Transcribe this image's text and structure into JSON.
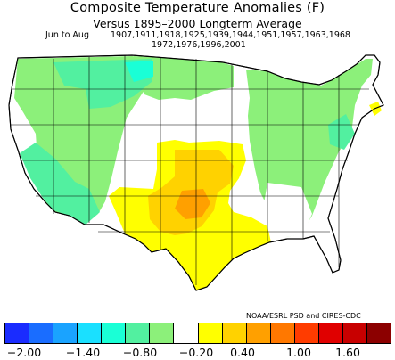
{
  "title": "Composite Temperature Anomalies (F)",
  "subtitle": "Versus 1895–2000 Longterm Average",
  "period": "Jun to Aug",
  "years_line1": "1907,1911,1918,1925,1939,1944,1951,1957,1963,1968",
  "years_line2": "1972,1976,1996,2001",
  "credit": "NOAA/ESRL PSD and CIRES-CDC",
  "colorbar": {
    "colors": [
      "#1a2cff",
      "#1a6dff",
      "#1aa3ff",
      "#1ae0ff",
      "#1affd6",
      "#52f0a0",
      "#8cf07a",
      "#ffffff",
      "#ffff00",
      "#ffd200",
      "#ffa000",
      "#ff7800",
      "#ff3c00",
      "#e00000",
      "#c80000",
      "#8c0000"
    ],
    "tick_labels": [
      "−2.00",
      "−1.40",
      "−0.80",
      "−0.20",
      "0.40",
      "1.00",
      "1.60"
    ]
  },
  "map_legend_meaning": "colored climate divisions show composite temperature anomaly in °F"
}
